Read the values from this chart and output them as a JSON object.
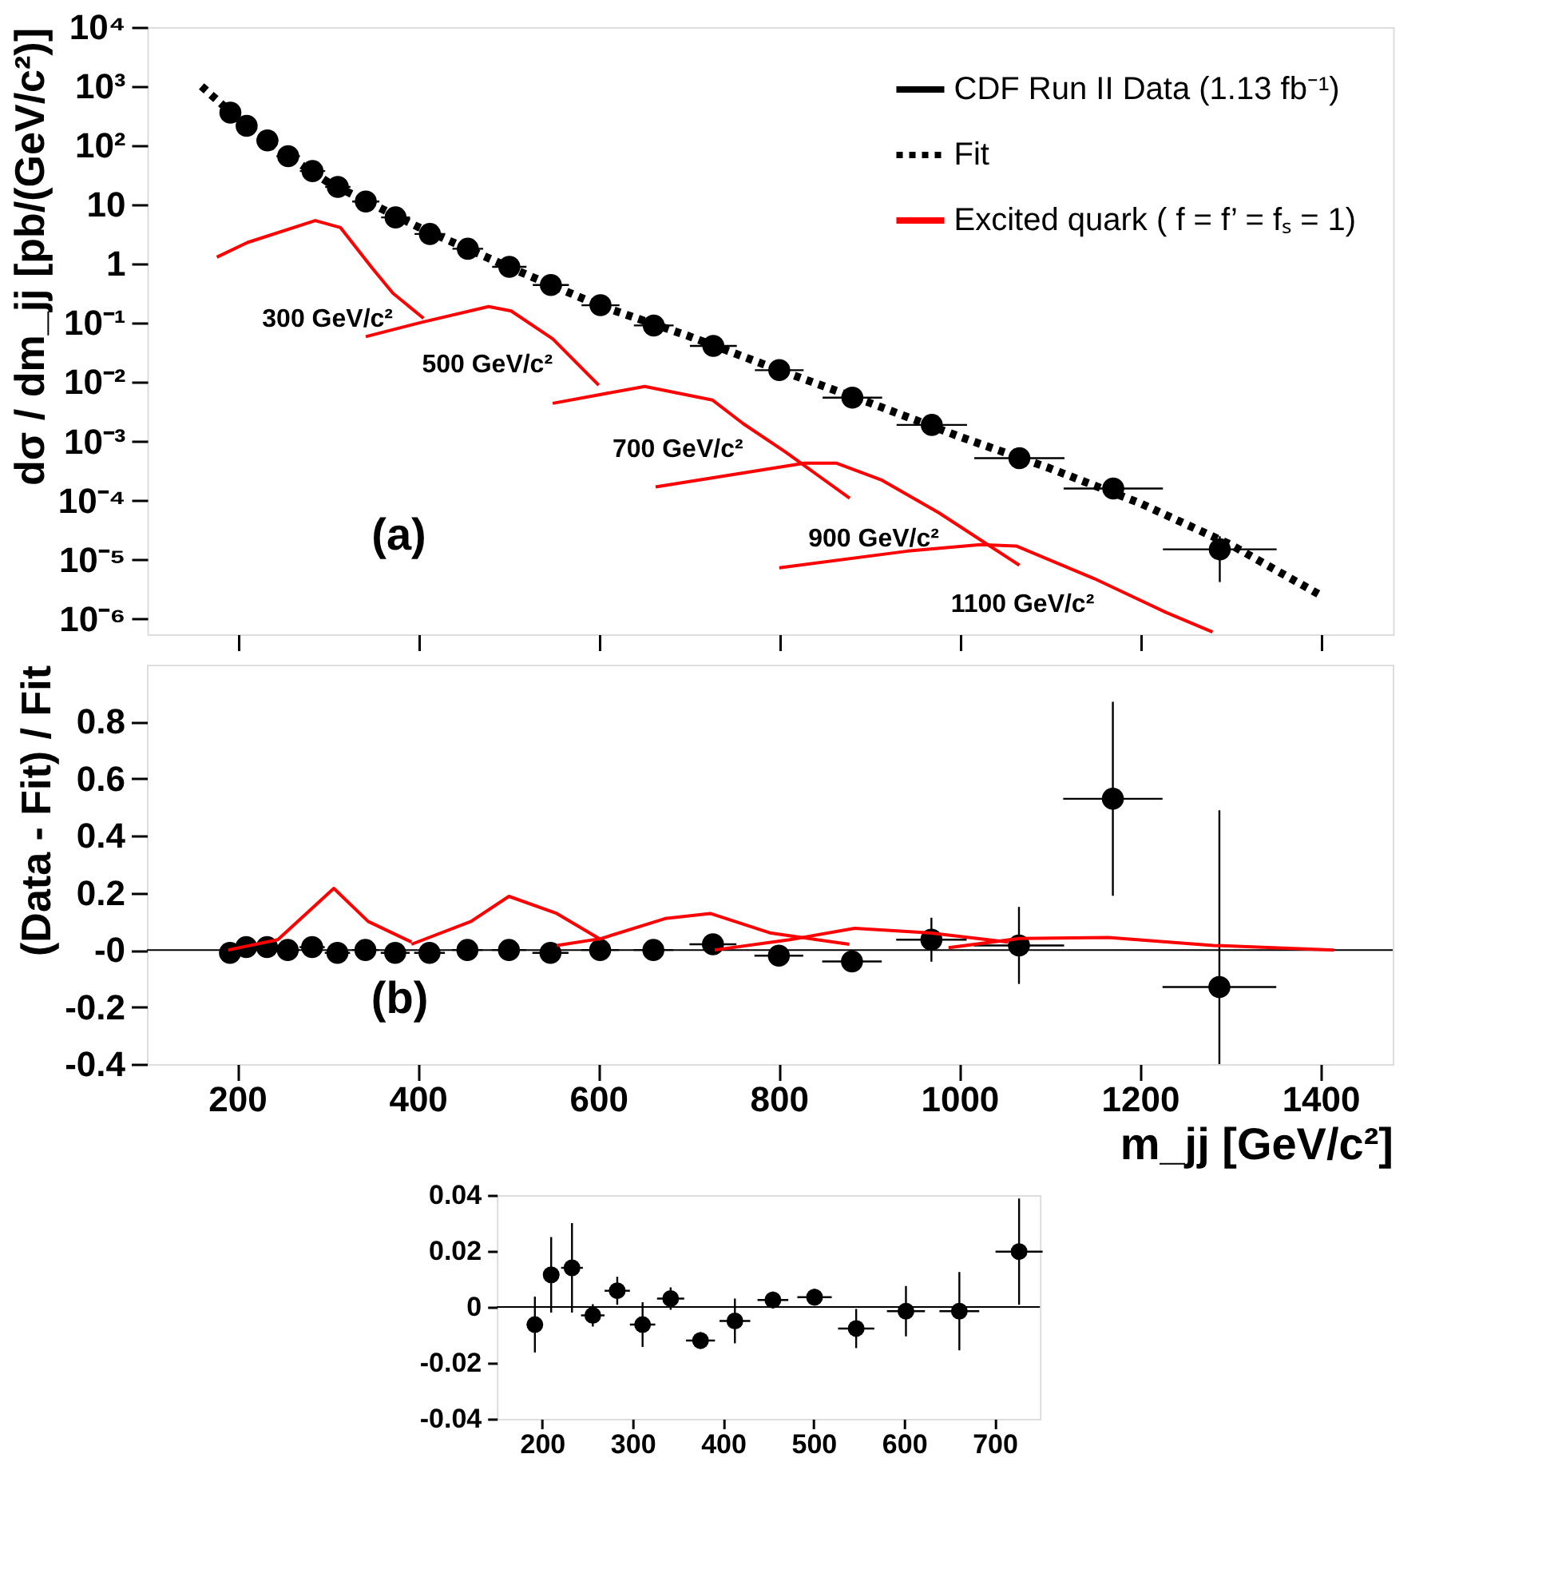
{
  "chart_data": [
    {
      "type": "scatter",
      "ylabel": "dσ / dm_jj [pb/(GeV/c²)]",
      "log": "y",
      "legend": "top right",
      "grid": false,
      "tick_labels": "y",
      "xlim": [
        100,
        1480
      ],
      "xticks": [
        200,
        400,
        600,
        800,
        1000,
        1200,
        1400
      ],
      "ylim": [
        5.5e-07,
        10000
      ],
      "yticks": [
        {
          "value": 10000,
          "label": "10⁴"
        },
        {
          "value": 1000,
          "label": "10³"
        },
        {
          "value": 100,
          "label": "10²"
        },
        10,
        1,
        {
          "value": 0.1,
          "label": "10⁻¹"
        },
        {
          "value": 0.01,
          "label": "10⁻²"
        },
        {
          "value": 0.001,
          "label": "10⁻³"
        },
        {
          "value": 0.0001,
          "label": "10⁻⁴"
        },
        {
          "value": 1e-05,
          "label": "10⁻⁵"
        },
        {
          "value": 1e-06,
          "label": "10⁻⁶"
        }
      ],
      "annotations": [
        "(a)",
        {
          "text": "300 GeV/c²",
          "x": 372,
          "y": 0.32
        },
        {
          "text": "500 GeV/c²",
          "x": 549,
          "y": 0.054
        },
        {
          "text": "700 GeV/c²",
          "x": 760,
          "y": 0.002
        },
        {
          "text": "900 GeV/c²",
          "x": 977,
          "y": 6.2e-05
        },
        {
          "text": "1100 GeV/c²",
          "x": 1149,
          "y": 4.8e-06
        }
      ],
      "series": [
        {
          "name": "CDF Run II Data (1.13 fb⁻¹)",
          "marker": "circle",
          "color": "#000000",
          "x": [
            192,
            210,
            233,
            256,
            283,
            311,
            342,
            375,
            413,
            455,
            501,
            547,
            602,
            661,
            727,
            800,
            881,
            969,
            1066,
            1170,
            1288
          ],
          "values": [
            360,
            215,
            122,
            66,
            37,
            20,
            11.3,
            6.1,
            3.2,
            1.8,
            0.89,
            0.44,
            0.2,
            0.091,
            0.041,
            0.016,
            0.0055,
            0.0019,
            0.00052,
            0.00016,
            1.5e-05
          ],
          "errors": [
            null,
            null,
            null,
            null,
            null,
            null,
            null,
            null,
            null,
            null,
            null,
            null,
            null,
            null,
            null,
            null,
            null,
            null,
            null,
            null,
            [
              4.2e-06,
              2.5e-05
            ]
          ],
          "xerrors": [
            9,
            9,
            12,
            13,
            14,
            14,
            15,
            16,
            17,
            17,
            19,
            20,
            21,
            22,
            26,
            27,
            33,
            39,
            50,
            55,
            63
          ]
        },
        {
          "name": "Fit",
          "type": "line",
          "line_style": "dotted",
          "color": "#000000",
          "x": [
            160,
            200,
            250,
            300,
            400,
            500,
            600,
            700,
            800,
            900,
            1000,
            1100,
            1200,
            1300,
            1400
          ],
          "values": [
            1000,
            290,
            75,
            24,
            4.2,
            0.89,
            0.2,
            0.06,
            0.016,
            0.0045,
            0.0012,
            0.00035,
            9e-05,
            1.8e-05,
            2.5e-06
          ]
        },
        {
          "name": "Excited quark ( f = f’ = fₛ = 1)",
          "type": "line",
          "color": "#ff0000",
          "x": [
            177,
            211,
            286,
            314,
            349,
            372,
            406
          ],
          "values": [
            1.3,
            2.3,
            5.4,
            4.1,
            0.85,
            0.32,
            0.12
          ]
        },
        {
          "type": "line",
          "color": "#ff0000",
          "x": [
            342,
            406,
            478,
            503,
            549,
            600
          ],
          "values": [
            0.059,
            0.105,
            0.19,
            0.16,
            0.054,
            0.0089
          ]
        },
        {
          "type": "line",
          "color": "#ff0000",
          "x": [
            549,
            651,
            726,
            760,
            807,
            878
          ],
          "values": [
            0.0044,
            0.0085,
            0.005,
            0.002,
            0.00066,
            0.00011
          ]
        },
        {
          "type": "line",
          "color": "#ff0000",
          "x": [
            663,
            828,
            863,
            914,
            977,
            1066
          ],
          "values": [
            0.00017,
            0.00043,
            0.00043,
            0.00022,
            6.2e-05,
            8.1e-06
          ]
        },
        {
          "type": "line",
          "color": "#ff0000",
          "x": [
            800,
            942,
            1023,
            1063,
            1149,
            1228,
            1280
          ],
          "values": [
            7.3e-06,
            1.4e-05,
            1.8e-05,
            1.7e-05,
            4.8e-06,
            1.3e-06,
            6e-07
          ]
        }
      ]
    },
    {
      "type": "scatter",
      "xlabel": "m_jj [GeV/c²]",
      "ylabel": "(Data - Fit) / Fit",
      "grid": false,
      "xlim": [
        100,
        1480
      ],
      "xticks": [
        200,
        400,
        600,
        800,
        1000,
        1200,
        1400
      ],
      "ylim": [
        -0.4,
        1.0
      ],
      "yticks": [
        -0.4,
        -0.2,
        {
          "value": 0,
          "label": "-0"
        },
        0.2,
        0.4,
        0.6,
        0.8
      ],
      "ref_lines": [
        {
          "axis": "y",
          "value": 0,
          "color": "#000000"
        }
      ],
      "annotations": [
        "(b)"
      ],
      "series": [
        {
          "marker": "circle",
          "color": "#000000",
          "x": [
            192,
            210,
            233,
            256,
            283,
            311,
            342,
            375,
            413,
            455,
            501,
            547,
            602,
            661,
            727,
            800,
            881,
            969,
            1066,
            1170,
            1288
          ],
          "values": [
            -0.01,
            0.01,
            0.01,
            0,
            0.01,
            -0.01,
            0,
            -0.01,
            -0.01,
            0,
            0,
            -0.01,
            0,
            0,
            0.02,
            -0.02,
            -0.04,
            0.036,
            0.016,
            0.53,
            -0.13
          ],
          "errors": [
            null,
            null,
            null,
            null,
            null,
            null,
            null,
            null,
            null,
            null,
            null,
            null,
            null,
            null,
            null,
            null,
            null,
            0.077,
            0.135,
            0.34,
            [
              -0.4,
              0.49
            ]
          ],
          "xerrors": [
            9,
            9,
            12,
            13,
            14,
            14,
            15,
            16,
            17,
            17,
            19,
            20,
            21,
            22,
            26,
            27,
            33,
            39,
            50,
            55,
            63
          ]
        },
        {
          "type": "line",
          "color": "#ff0000",
          "x": [
            190,
            245,
            307,
            345,
            393
          ],
          "values": [
            0,
            0.036,
            0.216,
            0.1,
            0.028
          ]
        },
        {
          "type": "line",
          "color": "#ff0000",
          "x": [
            393,
            459,
            501,
            554,
            603
          ],
          "values": [
            0.02,
            0.1,
            0.188,
            0.128,
            0.036
          ]
        },
        {
          "type": "line",
          "color": "#ff0000",
          "x": [
            554,
            603,
            674,
            724,
            790,
            878
          ],
          "values": [
            0.016,
            0.04,
            0.11,
            0.128,
            0.06,
            0.02
          ]
        },
        {
          "type": "line",
          "color": "#ff0000",
          "x": [
            729,
            812,
            884,
            967,
            1054
          ],
          "values": [
            0,
            0.036,
            0.076,
            0.06,
            0.028
          ]
        },
        {
          "type": "line",
          "color": "#ff0000",
          "x": [
            988,
            1066,
            1165,
            1281,
            1415
          ],
          "values": [
            0.008,
            0.04,
            0.044,
            0.016,
            0
          ]
        }
      ]
    },
    {
      "type": "scatter",
      "grid": false,
      "xlim": [
        150,
        750
      ],
      "xticks": [
        200,
        300,
        400,
        500,
        600,
        700
      ],
      "ylim": [
        -0.04,
        0.04
      ],
      "yticks": [
        -0.04,
        -0.02,
        0,
        0.02,
        0.04
      ],
      "ref_lines": [
        {
          "axis": "y",
          "value": 0,
          "color": "#000000"
        }
      ],
      "series": [
        {
          "marker": "circle",
          "color": "#000000",
          "x": [
            192,
            210,
            233,
            256,
            283,
            311,
            342,
            375,
            413,
            455,
            501,
            547,
            602,
            661,
            727
          ],
          "values": [
            -0.0063,
            0.0115,
            0.014,
            -0.003,
            0.0058,
            -0.0063,
            0.003,
            -0.012,
            -0.005,
            0.0025,
            0.0035,
            -0.0077,
            -0.0015,
            -0.0015,
            0.0198
          ],
          "errors": [
            0.01,
            0.0135,
            0.016,
            0.004,
            0.005,
            0.008,
            0.004,
            0.003,
            0.008,
            0.003,
            0.003,
            0.007,
            0.009,
            0.014,
            0.019
          ],
          "xerrors": [
            9,
            9,
            12,
            13,
            14,
            14,
            15,
            16,
            17,
            17,
            19,
            20,
            21,
            22,
            26
          ]
        }
      ]
    }
  ]
}
